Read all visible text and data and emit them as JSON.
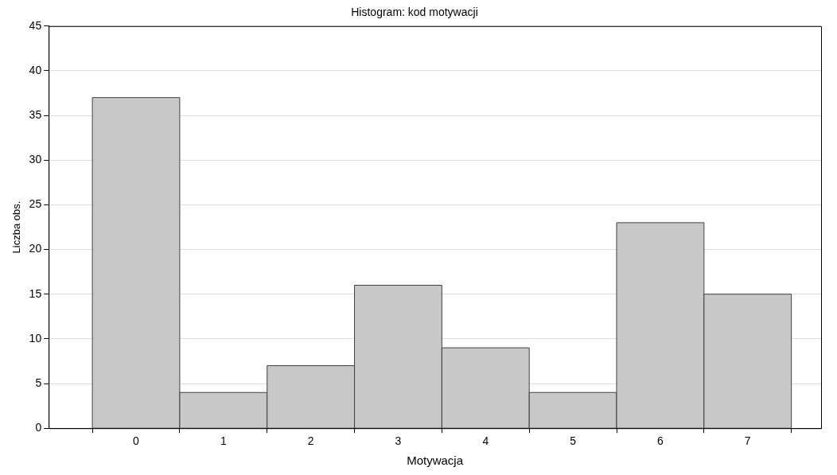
{
  "chart_data": {
    "type": "bar",
    "title": "Histogram: kod motywacji",
    "xlabel": "Motywacja",
    "ylabel": "Liczba obs.",
    "categories": [
      "0",
      "1",
      "2",
      "3",
      "4",
      "5",
      "6",
      "7"
    ],
    "values": [
      37,
      4,
      7,
      16,
      9,
      4,
      23,
      15
    ],
    "color": "#c8c8c8",
    "ylim": [
      0,
      45
    ],
    "yticks": [
      0,
      5,
      10,
      15,
      20,
      25,
      30,
      35,
      40,
      45
    ],
    "grid": "y",
    "legend": false
  }
}
